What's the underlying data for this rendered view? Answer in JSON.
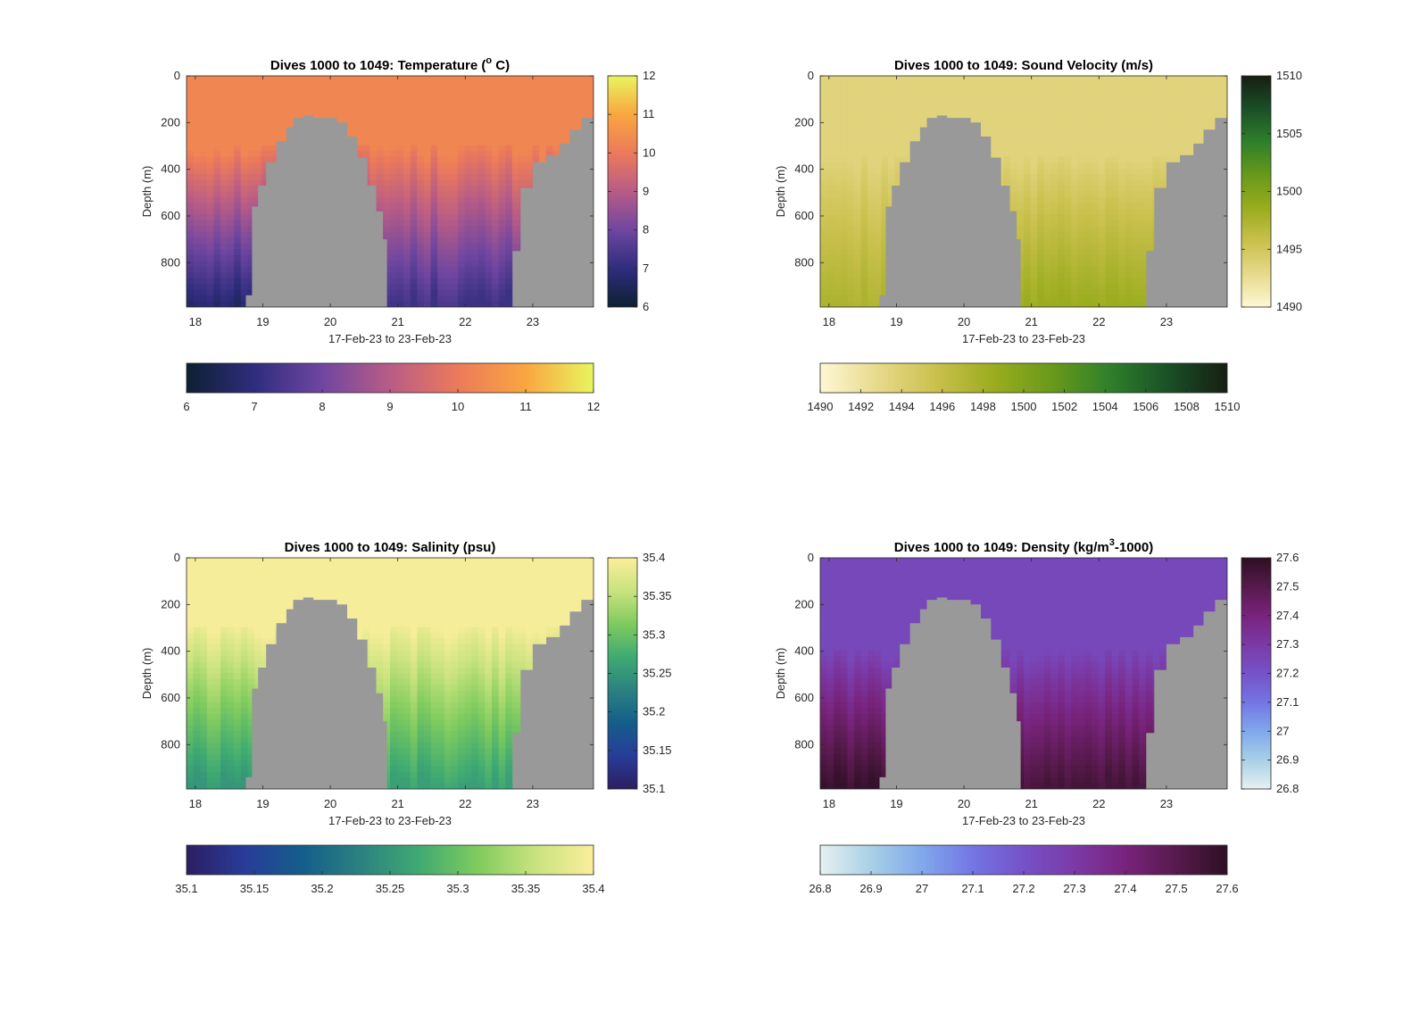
{
  "figure": {
    "background": "#ffffff",
    "bathymetry_color": "#999999"
  },
  "chart_data": [
    {
      "type": "heatmap",
      "title": "Dives 1000 to 1049: Temperature (",
      "title_sup": "o",
      "title_tail": " C)",
      "xlabel": "17-Feb-23 to 23-Feb-23",
      "ylabel": "Depth (m)",
      "xlim": [
        17.87,
        23.9
      ],
      "ylim": [
        0,
        990
      ],
      "xticks": [
        "18",
        "19",
        "20",
        "21",
        "22",
        "23"
      ],
      "yticks": [
        "0",
        "200",
        "400",
        "600",
        "800"
      ],
      "colorbar": {
        "min": 6,
        "max": 12,
        "ticks": [
          "6",
          "7",
          "8",
          "9",
          "10",
          "11",
          "12"
        ],
        "colors": [
          "#0d2031",
          "#2f2d7e",
          "#6f46a0",
          "#b85c86",
          "#ec7a5a",
          "#f9a640",
          "#e9f55f"
        ]
      },
      "field": {
        "surface_value": 10.3,
        "layer_depth": 300,
        "deep_west": 6.6,
        "deep_east": 7.2
      },
      "ridge": [
        [
          18.75,
          940
        ],
        [
          18.84,
          560
        ],
        [
          18.93,
          470
        ],
        [
          19.05,
          370
        ],
        [
          19.2,
          280
        ],
        [
          19.35,
          220
        ],
        [
          19.45,
          180
        ],
        [
          19.6,
          170
        ],
        [
          19.75,
          180
        ],
        [
          19.95,
          180
        ],
        [
          20.1,
          200
        ],
        [
          20.25,
          260
        ],
        [
          20.4,
          350
        ],
        [
          20.55,
          470
        ],
        [
          20.68,
          580
        ],
        [
          20.78,
          700
        ],
        [
          20.84,
          990
        ]
      ],
      "slope": [
        [
          22.65,
          990
        ],
        [
          22.7,
          750
        ],
        [
          22.82,
          480
        ],
        [
          23.0,
          370
        ],
        [
          23.2,
          340
        ],
        [
          23.4,
          290
        ],
        [
          23.55,
          230
        ],
        [
          23.72,
          180
        ],
        [
          23.9,
          200
        ]
      ]
    },
    {
      "type": "heatmap",
      "title": "Dives 1000 to 1049: Sound Velocity (m/s)",
      "title_sup": "",
      "title_tail": "",
      "xlabel": "17-Feb-23 to 23-Feb-23",
      "ylabel": "Depth (m)",
      "xlim": [
        17.87,
        23.9
      ],
      "ylim": [
        0,
        990
      ],
      "xticks": [
        "18",
        "19",
        "20",
        "21",
        "22",
        "23"
      ],
      "yticks": [
        "0",
        "200",
        "400",
        "600",
        "800"
      ],
      "colorbar": {
        "min": 1490,
        "max": 1510,
        "ticks": [
          "1490",
          "1495",
          "1500",
          "1505",
          "1510"
        ],
        "colors": [
          "#fdf8d4",
          "#e7d98a",
          "#c9c04c",
          "#9aac1e",
          "#68991a",
          "#2e7f2b",
          "#1a4f26",
          "#171e12"
        ]
      },
      "field": {
        "surface_value": 1493.5,
        "layer_depth": 350,
        "deep_west": 1497.5,
        "deep_east": 1498.5
      },
      "ridge": [
        [
          18.75,
          940
        ],
        [
          18.84,
          560
        ],
        [
          18.93,
          470
        ],
        [
          19.05,
          370
        ],
        [
          19.2,
          280
        ],
        [
          19.35,
          220
        ],
        [
          19.45,
          180
        ],
        [
          19.6,
          170
        ],
        [
          19.75,
          180
        ],
        [
          19.95,
          180
        ],
        [
          20.1,
          200
        ],
        [
          20.25,
          260
        ],
        [
          20.4,
          350
        ],
        [
          20.55,
          470
        ],
        [
          20.68,
          580
        ],
        [
          20.78,
          700
        ],
        [
          20.84,
          990
        ]
      ],
      "slope": [
        [
          22.65,
          990
        ],
        [
          22.7,
          750
        ],
        [
          22.82,
          480
        ],
        [
          23.0,
          370
        ],
        [
          23.2,
          340
        ],
        [
          23.4,
          290
        ],
        [
          23.55,
          230
        ],
        [
          23.72,
          180
        ],
        [
          23.9,
          200
        ]
      ]
    },
    {
      "type": "heatmap",
      "title": "Dives 1000 to 1049: Salinity (psu)",
      "title_sup": "",
      "title_tail": "",
      "xlabel": "17-Feb-23 to 23-Feb-23",
      "ylabel": "Depth (m)",
      "xlim": [
        17.87,
        23.9
      ],
      "ylim": [
        0,
        990
      ],
      "xticks": [
        "18",
        "19",
        "20",
        "21",
        "22",
        "23"
      ],
      "yticks": [
        "0",
        "200",
        "400",
        "600",
        "800"
      ],
      "colorbar": {
        "min": 35.1,
        "max": 35.4,
        "ticks": [
          "35.1",
          "35.15",
          "35.2",
          "35.25",
          "35.3",
          "35.35",
          "35.4"
        ],
        "colors": [
          "#2c1e62",
          "#283c99",
          "#145e8a",
          "#2b8280",
          "#3faa72",
          "#7fcb5e",
          "#c9e37e",
          "#fbee9c"
        ]
      },
      "field": {
        "surface_value": 35.395,
        "layer_depth": 300,
        "deep_west": 35.25,
        "deep_east": 35.26
      },
      "ridge": [
        [
          18.75,
          940
        ],
        [
          18.84,
          560
        ],
        [
          18.93,
          470
        ],
        [
          19.05,
          370
        ],
        [
          19.2,
          280
        ],
        [
          19.35,
          220
        ],
        [
          19.45,
          180
        ],
        [
          19.6,
          170
        ],
        [
          19.75,
          180
        ],
        [
          19.95,
          180
        ],
        [
          20.1,
          200
        ],
        [
          20.25,
          260
        ],
        [
          20.4,
          350
        ],
        [
          20.55,
          470
        ],
        [
          20.68,
          580
        ],
        [
          20.78,
          700
        ],
        [
          20.84,
          990
        ]
      ],
      "slope": [
        [
          22.65,
          990
        ],
        [
          22.7,
          750
        ],
        [
          22.82,
          480
        ],
        [
          23.0,
          370
        ],
        [
          23.2,
          340
        ],
        [
          23.4,
          290
        ],
        [
          23.55,
          230
        ],
        [
          23.72,
          180
        ],
        [
          23.9,
          200
        ]
      ]
    },
    {
      "type": "heatmap",
      "title": "Dives 1000 to 1049: Density (kg/m",
      "title_sup": "3",
      "title_tail": "-1000)",
      "xlabel": "17-Feb-23 to 23-Feb-23",
      "ylabel": "Depth (m)",
      "xlim": [
        17.87,
        23.9
      ],
      "ylim": [
        0,
        990
      ],
      "xticks": [
        "18",
        "19",
        "20",
        "21",
        "22",
        "23"
      ],
      "yticks": [
        "0",
        "200",
        "400",
        "600",
        "800"
      ],
      "colorbar": {
        "min": 26.8,
        "max": 27.6,
        "ticks": [
          "26.8",
          "26.9",
          "27",
          "27.1",
          "27.2",
          "27.3",
          "27.4",
          "27.5",
          "27.6"
        ],
        "colors": [
          "#e6f1f1",
          "#a8d0e6",
          "#80a8ec",
          "#7475e4",
          "#7552c8",
          "#7b3aa6",
          "#78237c",
          "#571a4c",
          "#2e0f24"
        ]
      },
      "field": {
        "surface_value": 27.24,
        "layer_depth": 400,
        "deep_west": 27.58,
        "deep_east": 27.55
      },
      "ridge": [
        [
          18.75,
          940
        ],
        [
          18.84,
          560
        ],
        [
          18.93,
          470
        ],
        [
          19.05,
          370
        ],
        [
          19.2,
          280
        ],
        [
          19.35,
          220
        ],
        [
          19.45,
          180
        ],
        [
          19.6,
          170
        ],
        [
          19.75,
          180
        ],
        [
          19.95,
          180
        ],
        [
          20.1,
          200
        ],
        [
          20.25,
          260
        ],
        [
          20.4,
          350
        ],
        [
          20.55,
          470
        ],
        [
          20.68,
          580
        ],
        [
          20.78,
          700
        ],
        [
          20.84,
          990
        ]
      ],
      "slope": [
        [
          22.65,
          990
        ],
        [
          22.7,
          750
        ],
        [
          22.82,
          480
        ],
        [
          23.0,
          370
        ],
        [
          23.2,
          340
        ],
        [
          23.4,
          290
        ],
        [
          23.55,
          230
        ],
        [
          23.72,
          180
        ],
        [
          23.9,
          200
        ]
      ]
    }
  ]
}
